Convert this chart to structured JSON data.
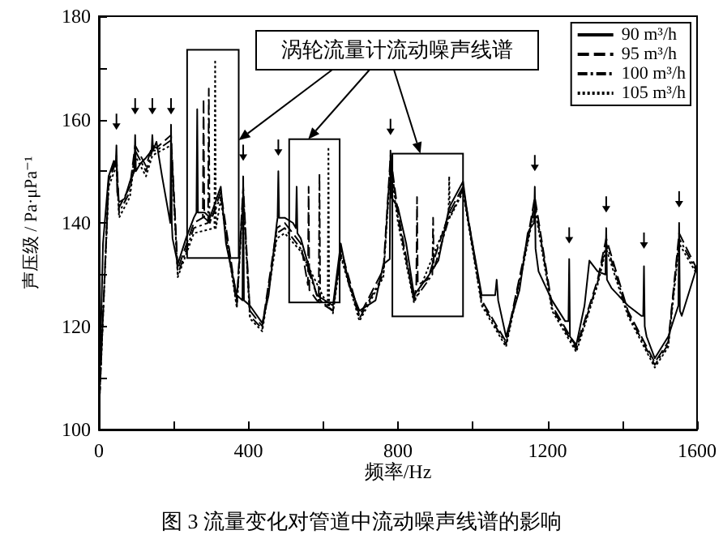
{
  "chart_data": {
    "type": "line",
    "xlabel": "频率/Hz",
    "ylabel": "声压级 / Pa·μPa⁻¹",
    "annotations": [
      "涡轮流量计流动噪声线谱",
      "图 3  流量变化对管道中流动噪声线谱的影响"
    ],
    "xlim": [
      0,
      1600
    ],
    "xticks": [
      0,
      {
        "value": 200,
        "label": null
      },
      400,
      {
        "value": 600,
        "label": null
      },
      800,
      {
        "value": 1000,
        "label": null
      },
      1200,
      {
        "value": 1400,
        "label": null
      },
      1600
    ],
    "ylim": [
      100,
      180
    ],
    "yticks": [
      100,
      {
        "value": 110,
        "label": null
      },
      120,
      {
        "value": 130,
        "label": null
      },
      140,
      {
        "value": 150,
        "label": null
      },
      160,
      {
        "value": 170,
        "label": null
      },
      180
    ],
    "grid": false,
    "legend": "top right",
    "marker": "none",
    "series": [
      {
        "name": "90 m³/h",
        "color": "#000000",
        "line_style": "solid",
        "x": [
          0,
          11,
          26,
          40,
          45,
          47,
          49,
          54,
          69,
          83,
          95,
          97,
          99,
          111,
          126,
          141,
          143,
          145,
          154,
          169,
          191,
          193,
          195,
          197,
          211,
          233,
          254,
          261,
          263,
          265,
          283,
          297,
          326,
          340,
          369,
          384,
          386,
          388,
          390,
          404,
          437,
          454,
          476,
          478,
          480,
          482,
          497,
          519,
          527,
          529,
          531,
          540,
          583,
          626,
          647,
          669,
          697,
          740,
          761,
          778,
          780,
          782,
          800,
          822,
          843,
          879,
          908,
          937,
          974,
          987,
          1024,
          1060,
          1064,
          1068,
          1089,
          1125,
          1147,
          1154,
          1164,
          1166,
          1168,
          1176,
          1212,
          1247,
          1256,
          1258,
          1260,
          1277,
          1299,
          1312,
          1334,
          1355,
          1357,
          1359,
          1371,
          1415,
          1451,
          1456,
          1458,
          1460,
          1465,
          1487,
          1523,
          1550,
          1552,
          1554,
          1559,
          1600
        ],
        "values": [
          103,
          136,
          149,
          152,
          151,
          155,
          146,
          144,
          144.7,
          148,
          150,
          157,
          150,
          151.5,
          152.6,
          154,
          157,
          154,
          155.7,
          149,
          140,
          159,
          140,
          137,
          132,
          137,
          141,
          142,
          162,
          142,
          142,
          141,
          147,
          136,
          126,
          125,
          149,
          125,
          125,
          124,
          120.6,
          126,
          140,
          141,
          150,
          141,
          141,
          140,
          139,
          147,
          138,
          137,
          126,
          124,
          136,
          128,
          123,
          125,
          132,
          133,
          154,
          145,
          143,
          136,
          126,
          129.5,
          132.7,
          143,
          148,
          141,
          126,
          126,
          129,
          125,
          118,
          127,
          138,
          139,
          140,
          147,
          135,
          130.6,
          125,
          121,
          121,
          133,
          118,
          116.4,
          124,
          132.7,
          130.6,
          130,
          139,
          129,
          127.4,
          124,
          122,
          122,
          131.6,
          120,
          118,
          113.8,
          118,
          124,
          140,
          123,
          122,
          131.6
        ]
      },
      {
        "name": "95 m³/h",
        "color": "#000000",
        "line_style": "dashed",
        "x": [
          0,
          26,
          47,
          54,
          83,
          97,
          126,
          143,
          154,
          193,
          211,
          254,
          278,
          280,
          282,
          297,
          326,
          369,
          386,
          404,
          437,
          476,
          497,
          540,
          559,
          561,
          563,
          583,
          626,
          647,
          697,
          761,
          780,
          800,
          843,
          849,
          851,
          853,
          879,
          937,
          974,
          1024,
          1089,
          1147,
          1166,
          1212,
          1277,
          1334,
          1357,
          1415,
          1487,
          1523,
          1552,
          1600
        ],
        "values": [
          103,
          148,
          153,
          143,
          147,
          155,
          151,
          155,
          154.5,
          157,
          131,
          140,
          141,
          164,
          141,
          140,
          146,
          125,
          147,
          123,
          120,
          139,
          140,
          136,
          128,
          147,
          127,
          125,
          123,
          135,
          122,
          131,
          153,
          142,
          125,
          128,
          145,
          128,
          129,
          142,
          147,
          125,
          117,
          137,
          145,
          124,
          116,
          129,
          137,
          123,
          113,
          117,
          138,
          131
        ]
      },
      {
        "name": "100 m³/h",
        "color": "#000000",
        "line_style": "dashdot",
        "x": [
          0,
          26,
          47,
          54,
          83,
          97,
          126,
          143,
          154,
          193,
          211,
          254,
          292,
          294,
          296,
          326,
          369,
          386,
          404,
          437,
          476,
          497,
          540,
          588,
          590,
          592,
          626,
          647,
          697,
          761,
          780,
          800,
          843,
          892,
          894,
          896,
          937,
          974,
          1024,
          1089,
          1147,
          1166,
          1212,
          1277,
          1334,
          1357,
          1415,
          1487,
          1523,
          1552,
          1600
        ],
        "values": [
          103,
          148,
          152,
          142,
          146,
          154,
          150,
          154,
          154,
          156,
          130,
          139,
          140,
          166,
          140,
          145,
          124,
          146,
          122,
          119.5,
          138,
          139,
          135,
          125,
          149.6,
          125,
          123,
          134,
          121.5,
          130,
          152,
          141,
          125,
          130,
          141,
          131,
          141,
          146.5,
          124.5,
          116.5,
          136.5,
          144,
          123.5,
          115.5,
          128.5,
          136,
          122.5,
          112.5,
          116.5,
          137,
          130.5
        ]
      },
      {
        "name": "105 m³/h",
        "color": "#000000",
        "line_style": "dotted",
        "x": [
          0,
          26,
          47,
          54,
          83,
          97,
          126,
          143,
          154,
          193,
          211,
          254,
          309,
          311,
          313,
          326,
          369,
          386,
          404,
          437,
          476,
          497,
          540,
          612,
          614,
          616,
          626,
          647,
          697,
          761,
          780,
          800,
          843,
          935,
          937,
          939,
          974,
          1024,
          1089,
          1147,
          1166,
          1212,
          1277,
          1334,
          1357,
          1415,
          1487,
          1523,
          1552,
          1600
        ],
        "values": [
          103,
          147,
          151,
          141,
          145,
          153,
          149,
          153,
          153.5,
          155,
          129.5,
          138,
          139,
          171.6,
          139,
          144.5,
          123.5,
          145,
          121.5,
          119,
          137,
          138,
          134.5,
          124,
          154.7,
          124,
          122.5,
          133.5,
          121,
          129.5,
          151,
          140,
          124.5,
          141,
          149,
          141,
          146,
          124,
          116,
          136,
          143,
          123,
          115,
          128,
          135,
          122,
          112,
          116,
          136,
          130
        ]
      }
    ]
  }
}
